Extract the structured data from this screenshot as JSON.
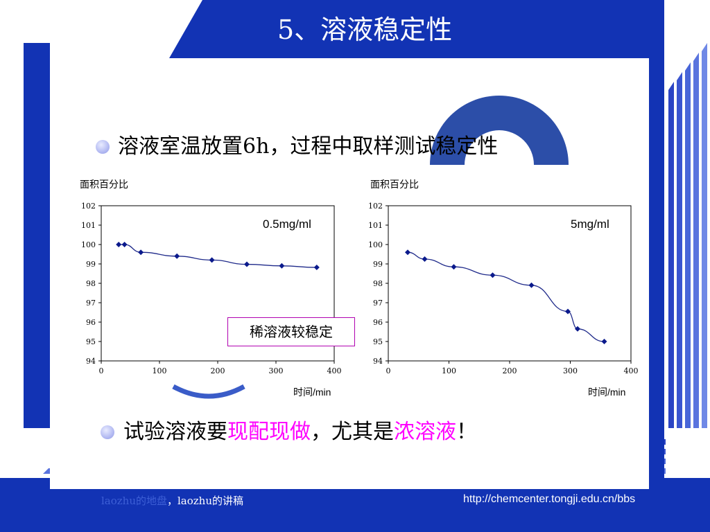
{
  "slide": {
    "title": "5、溶液稳定性",
    "bullet1": "溶液室温放置6h，过程中取样测试稳定性",
    "bullet2": {
      "pre": "试验溶液要",
      "hl1": "现配现做",
      "mid": "，尤其是",
      "hl2": "浓溶液",
      "post": "！"
    },
    "callout": "稀溶液较稳定",
    "footer_left_faint": "laozhu的地盘",
    "footer_left": "，laozhu的讲稿",
    "footer_right": "http://chemcenter.tongji.edu.cn/bbs",
    "colors": {
      "frame": "#1233b4",
      "highlight": "#ff00ff",
      "series": "#1f2a8a"
    }
  },
  "chart_data": [
    {
      "type": "line",
      "inset_label": "0.5mg/ml",
      "ylabel": "面积百分比",
      "xlabel": "时间/min",
      "xlim": [
        0,
        400
      ],
      "ylim": [
        94,
        102
      ],
      "xticks": [
        "0",
        "100",
        "200",
        "300",
        "400"
      ],
      "yticks": [
        "94",
        "95",
        "96",
        "97",
        "98",
        "99",
        "100",
        "101",
        "102"
      ],
      "grid": false,
      "x": [
        30,
        40,
        68,
        130,
        190,
        250,
        310,
        370
      ],
      "y": [
        100.0,
        100.0,
        99.6,
        99.4,
        99.2,
        98.98,
        98.9,
        98.82
      ]
    },
    {
      "type": "line",
      "inset_label": "5mg/ml",
      "ylabel": "面积百分比",
      "xlabel": "时间/min",
      "xlim": [
        0,
        400
      ],
      "ylim": [
        94,
        102
      ],
      "xticks": [
        "0",
        "100",
        "200",
        "300",
        "400"
      ],
      "yticks": [
        "94",
        "95",
        "96",
        "97",
        "98",
        "99",
        "100",
        "101",
        "102"
      ],
      "grid": false,
      "x": [
        32,
        60,
        108,
        172,
        236,
        296,
        312,
        356
      ],
      "y": [
        99.6,
        99.25,
        98.85,
        98.42,
        97.9,
        96.55,
        95.65,
        95.0
      ]
    }
  ]
}
